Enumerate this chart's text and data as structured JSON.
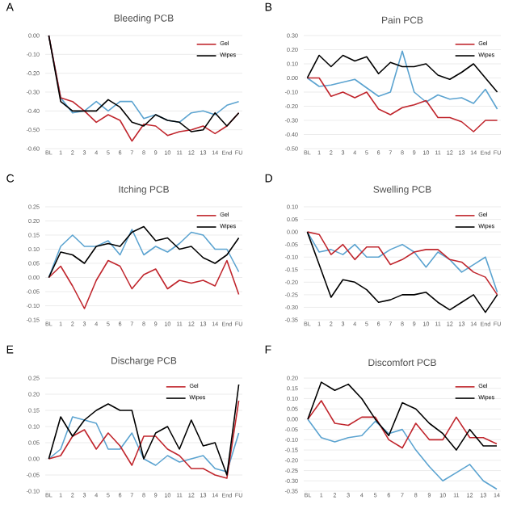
{
  "chart_data": [
    {
      "type": "line",
      "title": "Bleeding PCB",
      "annotations": [
        "A"
      ],
      "grid": "y",
      "legend": "top right",
      "categories": [
        "BL",
        "1",
        "2",
        "3",
        "4",
        "5",
        "6",
        "7",
        "8",
        "9",
        "10",
        "11",
        "12",
        "13",
        "14",
        "End",
        "FU"
      ],
      "ylim": [
        -0.6,
        0.0
      ],
      "yticks": [
        {
          "value": 0,
          "label": "0.00"
        },
        {
          "value": -0.1,
          "label": "-0.10"
        },
        {
          "value": -0.2,
          "label": "-0.20"
        },
        {
          "value": -0.3,
          "label": "-0.30"
        },
        {
          "value": -0.4,
          "label": "-0.40"
        },
        {
          "value": -0.5,
          "label": "-0.50"
        },
        {
          "value": -0.6,
          "label": "-0.60"
        }
      ],
      "series": [
        {
          "color": "#5ba3d0",
          "values": [
            0,
            -0.33,
            -0.41,
            -0.4,
            -0.35,
            -0.4,
            -0.35,
            -0.35,
            -0.44,
            -0.42,
            -0.45,
            -0.46,
            -0.41,
            -0.4,
            -0.42,
            -0.37,
            -0.35
          ]
        },
        {
          "name": "Gel",
          "color": "#c0262d",
          "values": [
            0,
            -0.33,
            -0.35,
            -0.4,
            -0.46,
            -0.42,
            -0.45,
            -0.56,
            -0.47,
            -0.48,
            -0.53,
            -0.51,
            -0.5,
            -0.48,
            -0.52,
            -0.48,
            -0.41
          ]
        },
        {
          "name": "Wipes",
          "color": "#000000",
          "values": [
            0,
            -0.35,
            -0.4,
            -0.4,
            -0.4,
            -0.34,
            -0.38,
            -0.46,
            -0.48,
            -0.42,
            -0.45,
            -0.46,
            -0.51,
            -0.5,
            -0.41,
            -0.48,
            -0.41
          ]
        }
      ]
    },
    {
      "type": "line",
      "title": "Pain PCB",
      "annotations": [
        "B"
      ],
      "grid": "y",
      "legend": "top right",
      "categories": [
        "BL",
        "1",
        "2",
        "3",
        "4",
        "5",
        "6",
        "7",
        "8",
        "9",
        "10",
        "11",
        "12",
        "13",
        "14",
        "End",
        "FU"
      ],
      "ylim": [
        -0.5,
        0.3
      ],
      "yticks": [
        {
          "value": 0.3,
          "label": "0.30"
        },
        {
          "value": 0.2,
          "label": "0.20"
        },
        {
          "value": 0.1,
          "label": "0.10"
        },
        {
          "value": 0,
          "label": "0.00"
        },
        {
          "value": -0.1,
          "label": "-0.10"
        },
        {
          "value": -0.2,
          "label": "-0.20"
        },
        {
          "value": -0.3,
          "label": "-0.30"
        },
        {
          "value": -0.4,
          "label": "-0.40"
        },
        {
          "value": -0.5,
          "label": "-0.50"
        }
      ],
      "series": [
        {
          "color": "#5ba3d0",
          "values": [
            0,
            -0.06,
            -0.05,
            -0.03,
            -0.01,
            -0.07,
            -0.13,
            -0.1,
            0.19,
            -0.1,
            -0.17,
            -0.12,
            -0.15,
            -0.14,
            -0.18,
            -0.08,
            -0.22
          ]
        },
        {
          "name": "Gel",
          "color": "#c0262d",
          "values": [
            0,
            0.0,
            -0.13,
            -0.1,
            -0.14,
            -0.1,
            -0.22,
            -0.26,
            -0.21,
            -0.19,
            -0.16,
            -0.28,
            -0.28,
            -0.31,
            -0.38,
            -0.3,
            -0.3
          ]
        },
        {
          "name": "Wipes",
          "color": "#000000",
          "values": [
            0,
            0.16,
            0.08,
            0.16,
            0.12,
            0.15,
            0.03,
            0.11,
            0.08,
            0.08,
            0.1,
            0.02,
            -0.01,
            0.04,
            0.1,
            0.0,
            -0.1
          ]
        }
      ]
    },
    {
      "type": "line",
      "title": "Itching PCB",
      "annotations": [
        "C"
      ],
      "grid": "y",
      "legend": "top right",
      "categories": [
        "BL",
        "1",
        "2",
        "3",
        "4",
        "5",
        "6",
        "7",
        "8",
        "9",
        "10",
        "11",
        "12",
        "13",
        "14",
        "End",
        "FU"
      ],
      "ylim": [
        -0.15,
        0.25
      ],
      "yticks": [
        {
          "value": 0.25,
          "label": "0.25"
        },
        {
          "value": 0.2,
          "label": "0.20"
        },
        {
          "value": 0.15,
          "label": "0.15"
        },
        {
          "value": 0.1,
          "label": "0.10"
        },
        {
          "value": 0.05,
          "label": "0.05"
        },
        {
          "value": 0,
          "label": "0.00"
        },
        {
          "value": -0.05,
          "label": "-0.05"
        },
        {
          "value": -0.1,
          "label": "-0.10"
        },
        {
          "value": -0.15,
          "label": "-0.15"
        }
      ],
      "series": [
        {
          "color": "#5ba3d0",
          "values": [
            0,
            0.11,
            0.15,
            0.11,
            0.11,
            0.13,
            0.08,
            0.17,
            0.08,
            0.11,
            0.09,
            0.12,
            0.16,
            0.15,
            0.1,
            0.1,
            0.02
          ]
        },
        {
          "name": "Gel",
          "color": "#c0262d",
          "values": [
            0,
            0.04,
            -0.03,
            -0.11,
            -0.01,
            0.06,
            0.04,
            -0.04,
            0.01,
            0.03,
            -0.04,
            -0.01,
            -0.02,
            -0.01,
            -0.03,
            0.06,
            -0.06
          ]
        },
        {
          "name": "Wipes",
          "color": "#000000",
          "values": [
            0,
            0.09,
            0.08,
            0.05,
            0.11,
            0.12,
            0.11,
            0.16,
            0.18,
            0.13,
            0.14,
            0.1,
            0.11,
            0.07,
            0.05,
            0.08,
            0.14
          ]
        }
      ]
    },
    {
      "type": "line",
      "title": "Swelling PCB",
      "annotations": [
        "D"
      ],
      "grid": "y",
      "legend": "top right",
      "categories": [
        "BL",
        "1",
        "2",
        "3",
        "4",
        "5",
        "6",
        "7",
        "8",
        "9",
        "10",
        "11",
        "12",
        "13",
        "14",
        "End",
        "FU"
      ],
      "ylim": [
        -0.35,
        0.1
      ],
      "yticks": [
        {
          "value": 0.1,
          "label": "0.10"
        },
        {
          "value": 0.05,
          "label": "0.05"
        },
        {
          "value": 0,
          "label": "0.00"
        },
        {
          "value": -0.05,
          "label": "-0.05"
        },
        {
          "value": -0.1,
          "label": "-0.10"
        },
        {
          "value": -0.15,
          "label": "-0.15"
        },
        {
          "value": -0.2,
          "label": "-0.20"
        },
        {
          "value": -0.25,
          "label": "-0.25"
        },
        {
          "value": -0.3,
          "label": "-0.30"
        },
        {
          "value": -0.35,
          "label": "-0.35"
        }
      ],
      "series": [
        {
          "color": "#5ba3d0",
          "values": [
            0,
            -0.08,
            -0.07,
            -0.09,
            -0.05,
            -0.1,
            -0.1,
            -0.07,
            -0.05,
            -0.08,
            -0.14,
            -0.08,
            -0.11,
            -0.16,
            -0.13,
            -0.1,
            -0.24
          ]
        },
        {
          "name": "Gel",
          "color": "#c0262d",
          "values": [
            0,
            -0.01,
            -0.09,
            -0.05,
            -0.11,
            -0.06,
            -0.06,
            -0.13,
            -0.11,
            -0.08,
            -0.07,
            -0.07,
            -0.11,
            -0.12,
            -0.16,
            -0.18,
            -0.25
          ]
        },
        {
          "name": "Wipes",
          "color": "#000000",
          "values": [
            0,
            -0.13,
            -0.26,
            -0.19,
            -0.2,
            -0.23,
            -0.28,
            -0.27,
            -0.25,
            -0.25,
            -0.24,
            -0.28,
            -0.31,
            -0.28,
            -0.25,
            -0.32,
            -0.25
          ]
        }
      ]
    },
    {
      "type": "line",
      "title": "Discharge PCB",
      "annotations": [
        "E"
      ],
      "grid": "y",
      "legend": "top",
      "categories": [
        "BL",
        "1",
        "2",
        "3",
        "4",
        "5",
        "6",
        "7",
        "8",
        "9",
        "10",
        "11",
        "12",
        "13",
        "14",
        "End",
        "FU"
      ],
      "ylim": [
        -0.1,
        0.25
      ],
      "yticks": [
        {
          "value": 0.25,
          "label": "0.25"
        },
        {
          "value": 0.2,
          "label": "0.20"
        },
        {
          "value": 0.15,
          "label": "0.15"
        },
        {
          "value": 0.1,
          "label": "0.10"
        },
        {
          "value": 0.05,
          "label": "0.05"
        },
        {
          "value": 0,
          "label": "0.00"
        },
        {
          "value": -0.05,
          "label": "-0.05"
        },
        {
          "value": -0.1,
          "label": "-0.10"
        }
      ],
      "series": [
        {
          "color": "#5ba3d0",
          "values": [
            0,
            0.03,
            0.13,
            0.12,
            0.11,
            0.03,
            0.03,
            0.08,
            0.0,
            -0.02,
            0.01,
            -0.01,
            0.0,
            0.01,
            -0.03,
            -0.04,
            0.08
          ]
        },
        {
          "name": "Gel",
          "color": "#c0262d",
          "values": [
            0,
            0.01,
            0.07,
            0.09,
            0.03,
            0.08,
            0.04,
            -0.02,
            0.07,
            0.07,
            0.03,
            0.01,
            -0.03,
            -0.03,
            -0.05,
            -0.06,
            0.18
          ]
        },
        {
          "name": "Wipes",
          "color": "#000000",
          "values": [
            0,
            0.13,
            0.07,
            0.12,
            0.15,
            0.17,
            0.15,
            0.15,
            0.0,
            0.08,
            0.1,
            0.03,
            0.12,
            0.04,
            0.05,
            -0.05,
            0.23
          ]
        }
      ]
    },
    {
      "type": "line",
      "title": "Discomfort PCB",
      "annotations": [
        "F"
      ],
      "grid": "y",
      "legend": "top right",
      "categories": [
        "BL",
        "1",
        "2",
        "3",
        "4",
        "5",
        "6",
        "7",
        "8",
        "9",
        "10",
        "11",
        "12",
        "13",
        "14"
      ],
      "ylim": [
        -0.35,
        0.2
      ],
      "yticks": [
        {
          "value": 0.2,
          "label": "0.20"
        },
        {
          "value": 0.15,
          "label": "0.15"
        },
        {
          "value": 0.1,
          "label": "0.10"
        },
        {
          "value": 0.05,
          "label": "0.05"
        },
        {
          "value": 0,
          "label": "0.00"
        },
        {
          "value": -0.05,
          "label": "-0.05"
        },
        {
          "value": -0.1,
          "label": "-0.10"
        },
        {
          "value": -0.15,
          "label": "-0.15"
        },
        {
          "value": -0.2,
          "label": "-0.20"
        },
        {
          "value": -0.25,
          "label": "-0.25"
        },
        {
          "value": -0.3,
          "label": "-0.30"
        },
        {
          "value": -0.35,
          "label": "-0.35"
        }
      ],
      "series": [
        {
          "color": "#5ba3d0",
          "values": [
            0,
            -0.09,
            -0.11,
            -0.09,
            -0.08,
            -0.01,
            -0.07,
            -0.05,
            -0.15,
            -0.23,
            -0.3,
            -0.26,
            -0.22,
            -0.3,
            -0.34
          ]
        },
        {
          "name": "Gel",
          "color": "#c0262d",
          "values": [
            0,
            0.09,
            -0.02,
            -0.03,
            0.01,
            0.01,
            -0.1,
            -0.14,
            -0.02,
            -0.1,
            -0.1,
            0.01,
            -0.09,
            -0.09,
            -0.12
          ]
        },
        {
          "name": "Wipes",
          "color": "#000000",
          "values": [
            0,
            0.18,
            0.14,
            0.17,
            0.1,
            0.0,
            -0.08,
            0.08,
            0.05,
            -0.02,
            -0.07,
            -0.15,
            -0.05,
            -0.13,
            -0.13
          ]
        }
      ]
    }
  ]
}
